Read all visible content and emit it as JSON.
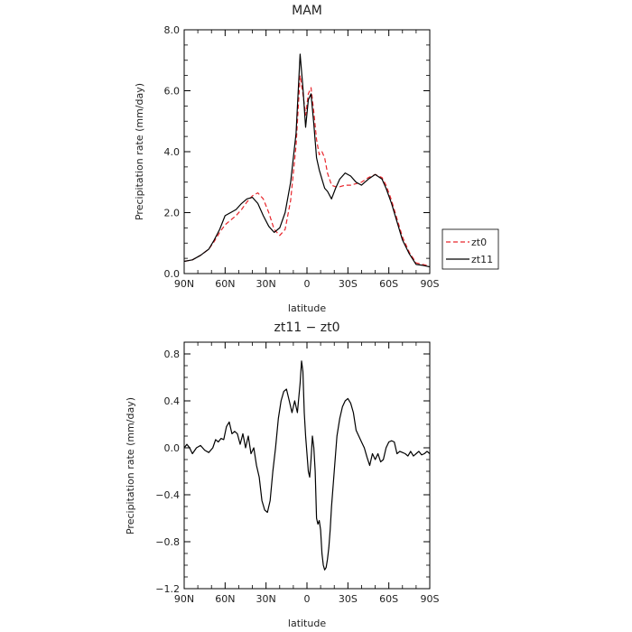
{
  "chart_data": [
    {
      "type": "line",
      "title": "MAM",
      "xlabel": "latitude",
      "ylabel": "Precipitation rate  (mm/day)",
      "xlim": [
        90,
        -90
      ],
      "ylim": [
        0,
        8
      ],
      "x_ticks": [
        90,
        60,
        30,
        0,
        -30,
        -60,
        -90
      ],
      "x_tick_labels": [
        "90N",
        "60N",
        "30N",
        "0",
        "30S",
        "60S",
        "90S"
      ],
      "y_ticks": [
        0,
        2,
        4,
        6,
        8
      ],
      "y_tick_labels": [
        "0.0",
        "2.0",
        "4.0",
        "6.0",
        "8.0"
      ],
      "legend_position": "right, lower",
      "series": [
        {
          "name": "zt0",
          "color": "#e8262c",
          "dash": "dashed",
          "x": [
            90,
            84,
            78,
            72,
            68,
            64,
            60,
            56,
            52,
            48,
            44,
            40,
            36,
            32,
            28,
            24,
            20,
            16,
            12,
            8,
            5,
            3,
            1,
            -1,
            -3,
            -5,
            -7,
            -9,
            -11,
            -13,
            -15,
            -18,
            -21,
            -24,
            -28,
            -32,
            -36,
            -40,
            -45,
            -50,
            -55,
            -58,
            -62,
            -66,
            -70,
            -75,
            -80,
            -85,
            -90
          ],
          "y": [
            0.4,
            0.45,
            0.6,
            0.8,
            1.05,
            1.35,
            1.6,
            1.75,
            1.9,
            2.1,
            2.35,
            2.55,
            2.65,
            2.45,
            2.0,
            1.45,
            1.25,
            1.45,
            2.4,
            4.2,
            6.5,
            5.9,
            5.2,
            5.9,
            6.1,
            5.3,
            4.4,
            3.9,
            4.0,
            3.8,
            3.3,
            2.9,
            2.85,
            2.85,
            2.9,
            2.9,
            2.95,
            3.0,
            3.15,
            3.25,
            3.15,
            2.9,
            2.4,
            1.8,
            1.2,
            0.7,
            0.35,
            0.3,
            0.25
          ]
        },
        {
          "name": "zt11",
          "color": "#000000",
          "dash": "solid",
          "x": [
            90,
            84,
            78,
            72,
            68,
            64,
            60,
            56,
            52,
            48,
            44,
            40,
            36,
            32,
            28,
            24,
            20,
            16,
            12,
            8,
            5,
            3,
            1,
            -1,
            -3,
            -5,
            -7,
            -9,
            -11,
            -13,
            -15,
            -18,
            -21,
            -24,
            -28,
            -32,
            -36,
            -40,
            -45,
            -50,
            -55,
            -58,
            -62,
            -66,
            -70,
            -75,
            -80,
            -85,
            -90
          ],
          "y": [
            0.4,
            0.45,
            0.6,
            0.8,
            1.1,
            1.45,
            1.9,
            2.0,
            2.1,
            2.3,
            2.45,
            2.5,
            2.3,
            1.9,
            1.55,
            1.35,
            1.5,
            2.0,
            3.0,
            4.6,
            7.2,
            6.1,
            4.8,
            5.7,
            5.9,
            4.9,
            3.8,
            3.4,
            3.1,
            2.8,
            2.7,
            2.45,
            2.8,
            3.1,
            3.3,
            3.2,
            3.0,
            2.9,
            3.1,
            3.25,
            3.1,
            2.8,
            2.3,
            1.7,
            1.1,
            0.65,
            0.3,
            0.27,
            0.22
          ]
        }
      ]
    },
    {
      "type": "line",
      "title": "zt11  −  zt0",
      "xlabel": "latitude",
      "ylabel": "Precipitation rate  (mm/day)",
      "xlim": [
        90,
        -90
      ],
      "ylim": [
        -1.2,
        0.9
      ],
      "x_ticks": [
        90,
        60,
        30,
        0,
        -30,
        -60,
        -90
      ],
      "x_tick_labels": [
        "90N",
        "60N",
        "30N",
        "0",
        "30S",
        "60S",
        "90S"
      ],
      "y_ticks": [
        -1.2,
        -0.8,
        -0.4,
        0.0,
        0.4,
        0.8
      ],
      "y_tick_labels": [
        "−1.2",
        "−0.8",
        "−0.4",
        "0.0",
        "0.4",
        "0.8"
      ],
      "series": [
        {
          "color": "#000000",
          "dash": "solid",
          "x": [
            90,
            88,
            86,
            84,
            81,
            78,
            75,
            72,
            69,
            67,
            65,
            63,
            61,
            59,
            57,
            55,
            53,
            51,
            49,
            47,
            45,
            43,
            41,
            39,
            37,
            35,
            33,
            31,
            29,
            27,
            25,
            23,
            21,
            19,
            17,
            15,
            13,
            11,
            9,
            7,
            5,
            4,
            3,
            2,
            1,
            0,
            -1,
            -2,
            -3,
            -4,
            -5,
            -6,
            -7,
            -8,
            -9,
            -10,
            -11,
            -12,
            -13,
            -14,
            -15,
            -16,
            -17,
            -18,
            -20,
            -22,
            -24,
            -26,
            -28,
            -30,
            -32,
            -34,
            -36,
            -38,
            -40,
            -42,
            -44,
            -46,
            -48,
            -50,
            -52,
            -54,
            -56,
            -58,
            -60,
            -62,
            -64,
            -66,
            -68,
            -70,
            -72,
            -74,
            -76,
            -78,
            -80,
            -82,
            -84,
            -86,
            -88,
            -90
          ],
          "y": [
            0.0,
            0.03,
            0.0,
            -0.05,
            0.0,
            0.02,
            -0.02,
            -0.04,
            0.0,
            0.07,
            0.05,
            0.08,
            0.07,
            0.18,
            0.22,
            0.12,
            0.14,
            0.12,
            0.03,
            0.12,
            0.0,
            0.1,
            -0.05,
            0.0,
            -0.15,
            -0.25,
            -0.45,
            -0.53,
            -0.55,
            -0.45,
            -0.2,
            0.0,
            0.25,
            0.4,
            0.48,
            0.5,
            0.4,
            0.3,
            0.4,
            0.3,
            0.55,
            0.74,
            0.65,
            0.3,
            0.1,
            -0.05,
            -0.2,
            -0.25,
            -0.1,
            0.1,
            0.0,
            -0.2,
            -0.6,
            -0.65,
            -0.62,
            -0.7,
            -0.9,
            -1.0,
            -1.04,
            -1.02,
            -0.95,
            -0.85,
            -0.7,
            -0.5,
            -0.2,
            0.1,
            0.25,
            0.35,
            0.4,
            0.42,
            0.38,
            0.3,
            0.15,
            0.1,
            0.05,
            0.0,
            -0.08,
            -0.15,
            -0.05,
            -0.1,
            -0.05,
            -0.12,
            -0.1,
            0.0,
            0.05,
            0.06,
            0.05,
            -0.05,
            -0.03,
            -0.04,
            -0.05,
            -0.07,
            -0.03,
            -0.07,
            -0.05,
            -0.03,
            -0.06,
            -0.05,
            -0.03,
            -0.05
          ]
        }
      ]
    }
  ]
}
